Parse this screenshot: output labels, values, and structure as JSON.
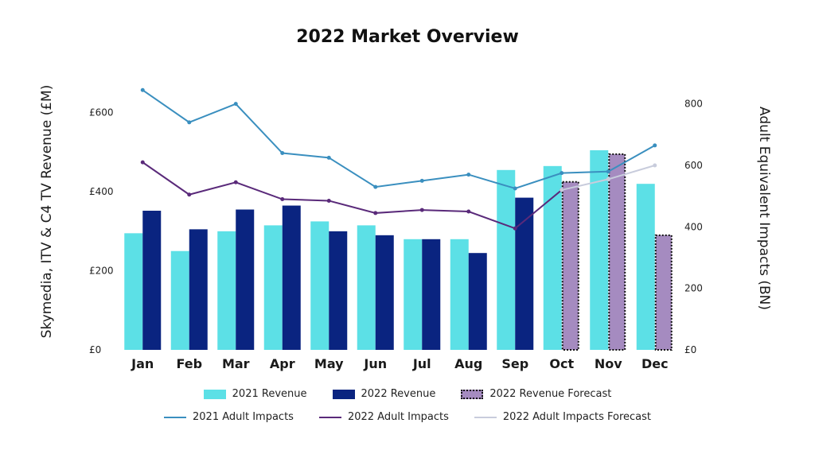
{
  "chart_data": {
    "type": "bar+line",
    "title": "2022 Market Overview",
    "categories": [
      "Jan",
      "Feb",
      "Mar",
      "Apr",
      "May",
      "Jun",
      "Jul",
      "Aug",
      "Sep",
      "Oct",
      "Nov",
      "Dec"
    ],
    "y_left": {
      "label": "Skymedia, ITV & C4 TV Revenue (£M)",
      "ticks": [
        "£0",
        "£200",
        "£400",
        "£600"
      ],
      "ylim": [
        0,
        700
      ]
    },
    "y_right": {
      "label": "Adult Equivalent Impacts (BN)",
      "ticks": [
        "£0",
        "200",
        "400",
        "600",
        "800"
      ],
      "ylim": [
        0,
        900
      ]
    },
    "bar_series": [
      {
        "name": "2021 Revenue",
        "color": "#5ce0e6",
        "values": [
          295,
          250,
          300,
          315,
          325,
          315,
          280,
          280,
          455,
          465,
          505,
          420
        ]
      },
      {
        "name": "2022 Revenue",
        "color": "#0a2480",
        "values": [
          352,
          305,
          355,
          365,
          300,
          290,
          280,
          245,
          385,
          null,
          null,
          null
        ]
      },
      {
        "name": "2022 Revenue Forecast",
        "color": "#a58bc0",
        "values": [
          null,
          null,
          null,
          null,
          null,
          null,
          null,
          null,
          null,
          425,
          495,
          290
        ]
      }
    ],
    "line_series": [
      {
        "name": "2021 Adult Impacts",
        "color": "#3a8fbf",
        "values": [
          845,
          740,
          800,
          640,
          625,
          530,
          550,
          570,
          525,
          575,
          580,
          665
        ]
      },
      {
        "name": "2022 Adult Impacts",
        "color": "#5a2a7a",
        "values": [
          610,
          505,
          545,
          490,
          485,
          445,
          455,
          450,
          395,
          520,
          null,
          null
        ]
      },
      {
        "name": "2022 Adult Impacts Forecast",
        "color": "#c8ccdc",
        "values": [
          null,
          null,
          null,
          null,
          null,
          null,
          null,
          null,
          null,
          520,
          555,
          600
        ]
      }
    ],
    "legend_position": "bottom"
  }
}
